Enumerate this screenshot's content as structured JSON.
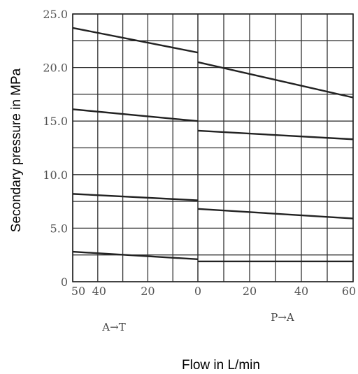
{
  "chart_data": {
    "type": "line",
    "xlabel": "Flow in L/min",
    "ylabel": "Secondary pressure in MPa",
    "ylim": [
      0,
      25
    ],
    "ytick_labels": [
      "0",
      "5.0",
      "10.0",
      "15.0",
      "20.0",
      "25.0"
    ],
    "left_panel": {
      "direction_label": "A→T",
      "xlim": [
        50,
        0
      ],
      "xtick_labels": [
        "50",
        "40",
        "20",
        "0"
      ]
    },
    "right_panel": {
      "direction_label": "P→A",
      "xlim": [
        0,
        60
      ],
      "xtick_labels": [
        "20",
        "40",
        "60"
      ]
    },
    "grid": true,
    "series": [
      {
        "left": {
          "x": [
            50,
            0
          ],
          "y": [
            23.7,
            21.4
          ]
        },
        "right": {
          "x": [
            0,
            60
          ],
          "y": [
            20.5,
            17.2
          ]
        }
      },
      {
        "left": {
          "x": [
            50,
            0
          ],
          "y": [
            16.1,
            15.0
          ]
        },
        "right": {
          "x": [
            0,
            60
          ],
          "y": [
            14.1,
            13.3
          ]
        }
      },
      {
        "left": {
          "x": [
            50,
            0
          ],
          "y": [
            8.2,
            7.6
          ]
        },
        "right": {
          "x": [
            0,
            60
          ],
          "y": [
            6.8,
            5.9
          ]
        }
      },
      {
        "left": {
          "x": [
            50,
            0
          ],
          "y": [
            2.8,
            2.1
          ]
        },
        "right": {
          "x": [
            0,
            60
          ],
          "y": [
            1.9,
            1.9
          ]
        }
      }
    ]
  }
}
